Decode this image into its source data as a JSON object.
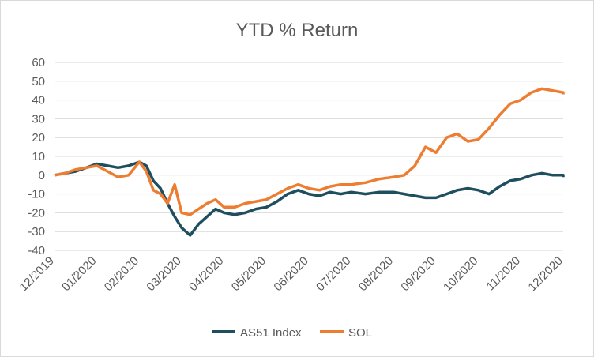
{
  "chart_data": {
    "type": "line",
    "title": "YTD % Return",
    "xlabel": "",
    "ylabel": "",
    "ylim": [
      -40,
      60
    ],
    "yticks": [
      60,
      50,
      40,
      30,
      20,
      10,
      0,
      -10,
      -20,
      -30,
      -40
    ],
    "x_tick_labels": [
      "12/2019",
      "01/2020",
      "02/2020",
      "03/2020",
      "04/2020",
      "05/2020",
      "06/2020",
      "07/2020",
      "08/2020",
      "09/2020",
      "10/2020",
      "11/2020",
      "12/2020"
    ],
    "grid": "horizontal",
    "legend_position": "bottom",
    "series": [
      {
        "name": "AS51 Index",
        "color": "#1f4e5f",
        "points": [
          [
            "12/2019",
            0
          ],
          [
            "12/2019",
            1
          ],
          [
            "12/2019",
            2
          ],
          [
            "12/2019",
            4
          ],
          [
            "01/2020",
            6
          ],
          [
            "01/2020",
            5
          ],
          [
            "01/2020",
            4
          ],
          [
            "01/2020",
            5
          ],
          [
            "02/2020",
            7
          ],
          [
            "02/2020",
            5
          ],
          [
            "02/2020",
            -3
          ],
          [
            "02/2020",
            -7
          ],
          [
            "02/2020",
            -15
          ],
          [
            "02/2020",
            -22
          ],
          [
            "03/2020",
            -28
          ],
          [
            "03/2020",
            -32
          ],
          [
            "03/2020",
            -26
          ],
          [
            "03/2020",
            -22
          ],
          [
            "03/2020",
            -18
          ],
          [
            "04/2020",
            -20
          ],
          [
            "04/2020",
            -21
          ],
          [
            "04/2020",
            -20
          ],
          [
            "04/2020",
            -18
          ],
          [
            "05/2020",
            -17
          ],
          [
            "05/2020",
            -14
          ],
          [
            "05/2020",
            -10
          ],
          [
            "05/2020",
            -8
          ],
          [
            "06/2020",
            -10
          ],
          [
            "06/2020",
            -11
          ],
          [
            "06/2020",
            -9
          ],
          [
            "06/2020",
            -10
          ],
          [
            "07/2020",
            -9
          ],
          [
            "07/2020",
            -10
          ],
          [
            "07/2020",
            -9
          ],
          [
            "08/2020",
            -9
          ],
          [
            "08/2020",
            -10
          ],
          [
            "08/2020",
            -11
          ],
          [
            "08/2020",
            -12
          ],
          [
            "09/2020",
            -12
          ],
          [
            "09/2020",
            -10
          ],
          [
            "09/2020",
            -8
          ],
          [
            "09/2020",
            -7
          ],
          [
            "10/2020",
            -8
          ],
          [
            "10/2020",
            -10
          ],
          [
            "10/2020",
            -6
          ],
          [
            "10/2020",
            -3
          ],
          [
            "11/2020",
            -2
          ],
          [
            "11/2020",
            0
          ],
          [
            "11/2020",
            1
          ],
          [
            "11/2020",
            0
          ],
          [
            "12/2020",
            0
          ],
          [
            "12/2020",
            -1
          ]
        ]
      },
      {
        "name": "SOL",
        "color": "#ed7d31",
        "points": [
          [
            "12/2019",
            0
          ],
          [
            "12/2019",
            1
          ],
          [
            "12/2019",
            3
          ],
          [
            "12/2019",
            4
          ],
          [
            "01/2020",
            5
          ],
          [
            "01/2020",
            2
          ],
          [
            "01/2020",
            -1
          ],
          [
            "01/2020",
            0
          ],
          [
            "02/2020",
            7
          ],
          [
            "02/2020",
            2
          ],
          [
            "02/2020",
            -8
          ],
          [
            "02/2020",
            -10
          ],
          [
            "02/2020",
            -15
          ],
          [
            "02/2020",
            -5
          ],
          [
            "03/2020",
            -20
          ],
          [
            "03/2020",
            -21
          ],
          [
            "03/2020",
            -18
          ],
          [
            "03/2020",
            -15
          ],
          [
            "03/2020",
            -13
          ],
          [
            "04/2020",
            -17
          ],
          [
            "04/2020",
            -17
          ],
          [
            "04/2020",
            -15
          ],
          [
            "04/2020",
            -14
          ],
          [
            "05/2020",
            -13
          ],
          [
            "05/2020",
            -10
          ],
          [
            "05/2020",
            -7
          ],
          [
            "05/2020",
            -5
          ],
          [
            "06/2020",
            -7
          ],
          [
            "06/2020",
            -8
          ],
          [
            "06/2020",
            -6
          ],
          [
            "06/2020",
            -5
          ],
          [
            "07/2020",
            -5
          ],
          [
            "07/2020",
            -4
          ],
          [
            "07/2020",
            -2
          ],
          [
            "08/2020",
            -1
          ],
          [
            "08/2020",
            0
          ],
          [
            "08/2020",
            5
          ],
          [
            "08/2020",
            15
          ],
          [
            "09/2020",
            12
          ],
          [
            "09/2020",
            20
          ],
          [
            "09/2020",
            22
          ],
          [
            "09/2020",
            18
          ],
          [
            "10/2020",
            19
          ],
          [
            "10/2020",
            25
          ],
          [
            "10/2020",
            32
          ],
          [
            "10/2020",
            38
          ],
          [
            "11/2020",
            40
          ],
          [
            "11/2020",
            44
          ],
          [
            "11/2020",
            46
          ],
          [
            "11/2020",
            45
          ],
          [
            "12/2020",
            44
          ],
          [
            "12/2020",
            43
          ]
        ]
      }
    ]
  }
}
